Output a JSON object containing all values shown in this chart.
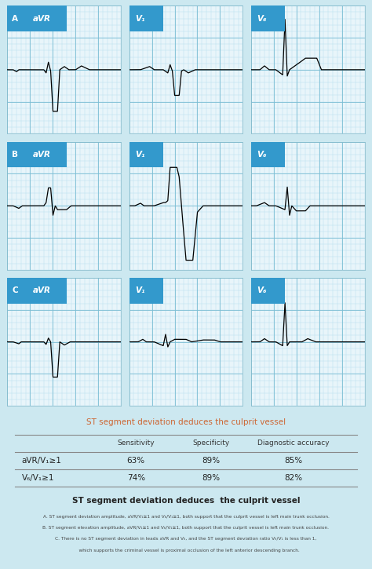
{
  "bg_color": "#cce8f0",
  "ecg_bg": "#e8f5fa",
  "grid_minor_color": "#a8d8ea",
  "grid_major_color": "#7bbdd4",
  "panel_labels": [
    "A",
    "B",
    "C"
  ],
  "lead_labels": [
    "aVR",
    "V₁",
    "V₆"
  ],
  "table_title": "ST segment deviation deduces the culprit vessel",
  "table_title_color": "#cc6633",
  "footer_title": "ST segment deviation deduces  the culprit vessel",
  "footer_title_color": "#222222",
  "footer_lines": [
    "A. ST segment deviation amplitude, aVR/V₁≥1 and V₆/V₁≥1, both support that the culprit vessel is left main trunk occlusion.",
    "B. ST segment elevation amplitude, aVR/V₁≥1 and V₆/V₁≥1, both support that the culprit vessel is left main trunk occlusion.",
    "C. There is no ST segment deviation in leads aVR and V₆, and the ST segment deviation ratio V₆/V₁ is less than 1,",
    "    which supports the criminal vessel is proximal occlusion of the left anterior descending branch."
  ],
  "table_headers": [
    "",
    "Sensitivity",
    "Specificity",
    "Diagnostic accuracy"
  ],
  "table_rows": [
    [
      "aVR/V₁≥1",
      "63%",
      "89%",
      "85%"
    ],
    [
      "V₆/V₁≥1",
      "74%",
      "89%",
      "82%"
    ]
  ],
  "header_bg": "#3399cc",
  "line_color": "#555555"
}
